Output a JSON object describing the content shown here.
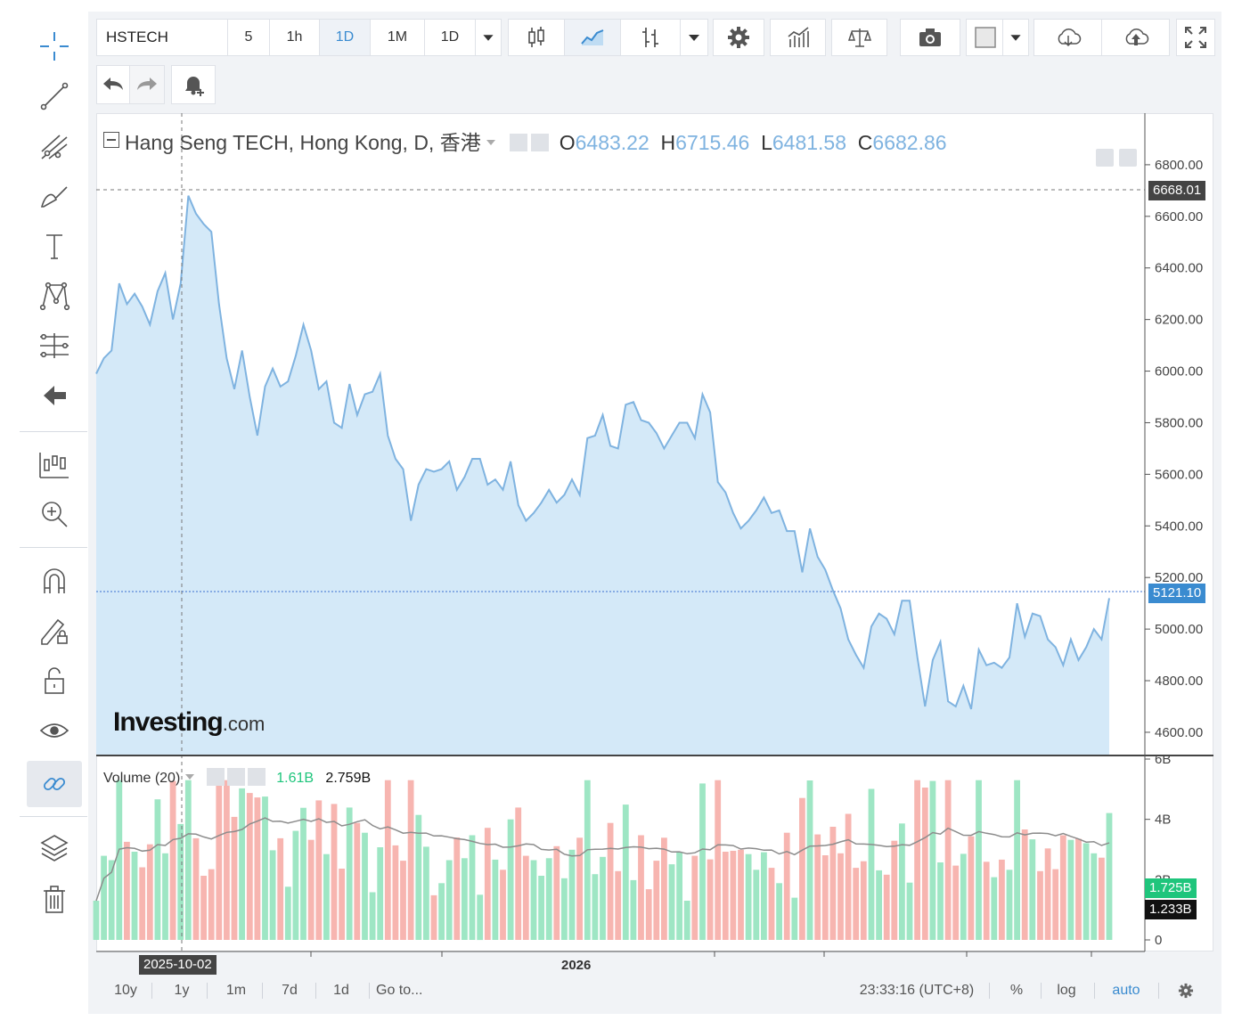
{
  "toolbar": {
    "symbol": "HSTECH",
    "intervals": [
      "5",
      "1h",
      "1D",
      "1M",
      "1D"
    ],
    "selected_interval_index": 2
  },
  "legend": {
    "title": "Hang Seng TECH, Hong Kong, D, 香港",
    "open_key": "O",
    "open": "6483.22",
    "high_key": "H",
    "high": "6715.46",
    "low_key": "L",
    "low": "6481.58",
    "close_key": "C",
    "close": "6682.86"
  },
  "volume_legend": {
    "title": "Volume (20)",
    "value": "1.61B",
    "ma_value": "2.759B"
  },
  "price_tags": {
    "crosshair": "6668.01",
    "last": "5121.10",
    "volume_last": "1.725B",
    "volume_ma": "1.233B"
  },
  "crosshair_date": "2025-10-02",
  "x_axis_label": "2026",
  "bottom_bar": {
    "ranges": [
      "10y",
      "1y",
      "1m",
      "7d",
      "1d"
    ],
    "goto": "Go to...",
    "time": "23:33:16 (UTC+8)",
    "percent": "%",
    "log": "log",
    "auto": "auto"
  },
  "logo": {
    "main": "Investing",
    "suffix": ".com"
  },
  "colors": {
    "line": "#7fb3e0",
    "area": "#d4e9f8",
    "up_volume": "#9ee6c4",
    "down_volume": "#f7b5b0",
    "last_tag": "#3a8bd0",
    "vol_tag_green": "#1fc57c"
  },
  "chart_data": {
    "type": "area",
    "price_axis_ticks": [
      "6800.00",
      "6600.00",
      "6400.00",
      "6200.00",
      "6000.00",
      "5800.00",
      "5600.00",
      "5400.00",
      "5200.00",
      "5000.00",
      "4800.00",
      "4600.00"
    ],
    "ylim": [
      4510,
      7000
    ],
    "volume_axis_ticks": [
      "6B",
      "4B",
      "2B",
      "0"
    ],
    "volume_ylim": [
      0,
      6
    ],
    "price": [
      5990,
      6050,
      6080,
      6340,
      6260,
      6300,
      6250,
      6180,
      6310,
      6380,
      6200,
      6340,
      6680,
      6610,
      6570,
      6540,
      6260,
      6050,
      5930,
      6080,
      5900,
      5750,
      5940,
      6010,
      5940,
      5960,
      6060,
      6180,
      6080,
      5930,
      5960,
      5800,
      5780,
      5950,
      5830,
      5910,
      5920,
      5990,
      5750,
      5660,
      5620,
      5420,
      5560,
      5620,
      5610,
      5620,
      5650,
      5540,
      5590,
      5660,
      5660,
      5560,
      5580,
      5540,
      5650,
      5480,
      5420,
      5450,
      5490,
      5540,
      5490,
      5520,
      5580,
      5520,
      5740,
      5750,
      5830,
      5710,
      5700,
      5870,
      5880,
      5810,
      5800,
      5760,
      5700,
      5750,
      5800,
      5800,
      5740,
      5910,
      5840,
      5570,
      5530,
      5450,
      5390,
      5420,
      5460,
      5510,
      5450,
      5460,
      5380,
      5380,
      5220,
      5390,
      5280,
      5230,
      5150,
      5080,
      4960,
      4900,
      4850,
      5010,
      5060,
      5040,
      4980,
      5110,
      5110,
      4890,
      4700,
      4880,
      4950,
      4720,
      4700,
      4780,
      4690,
      4920,
      4860,
      4870,
      4850,
      4890,
      5100,
      4970,
      5060,
      5050,
      4960,
      4930,
      4860,
      4960,
      4880,
      4930,
      5000,
      4960,
      5120
    ]
  }
}
